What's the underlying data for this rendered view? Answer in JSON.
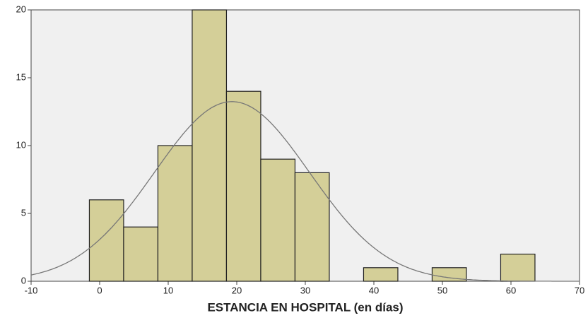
{
  "chart_data": {
    "type": "histogram",
    "x_label": "ESTANCIA EN HOSPITAL (en días)",
    "bins": [
      -1.5,
      3.5,
      8.5,
      13.5,
      18.5,
      23.5,
      28.5,
      33.5,
      38.5,
      43.5,
      48.5,
      53.5,
      58.5,
      63.5
    ],
    "counts": [
      6,
      4,
      10,
      20,
      14,
      9,
      8,
      0,
      1,
      0,
      1,
      0,
      2
    ],
    "color": "#d4cf98",
    "curve": {
      "mean": 19.3,
      "sd": 11.3
    },
    "xlim": [
      -10,
      70
    ],
    "xticks": [
      -10,
      0,
      10,
      20,
      30,
      40,
      50,
      60,
      70
    ],
    "ylim": [
      0,
      20
    ],
    "yticks": [
      0,
      5,
      10,
      15,
      20
    ]
  }
}
